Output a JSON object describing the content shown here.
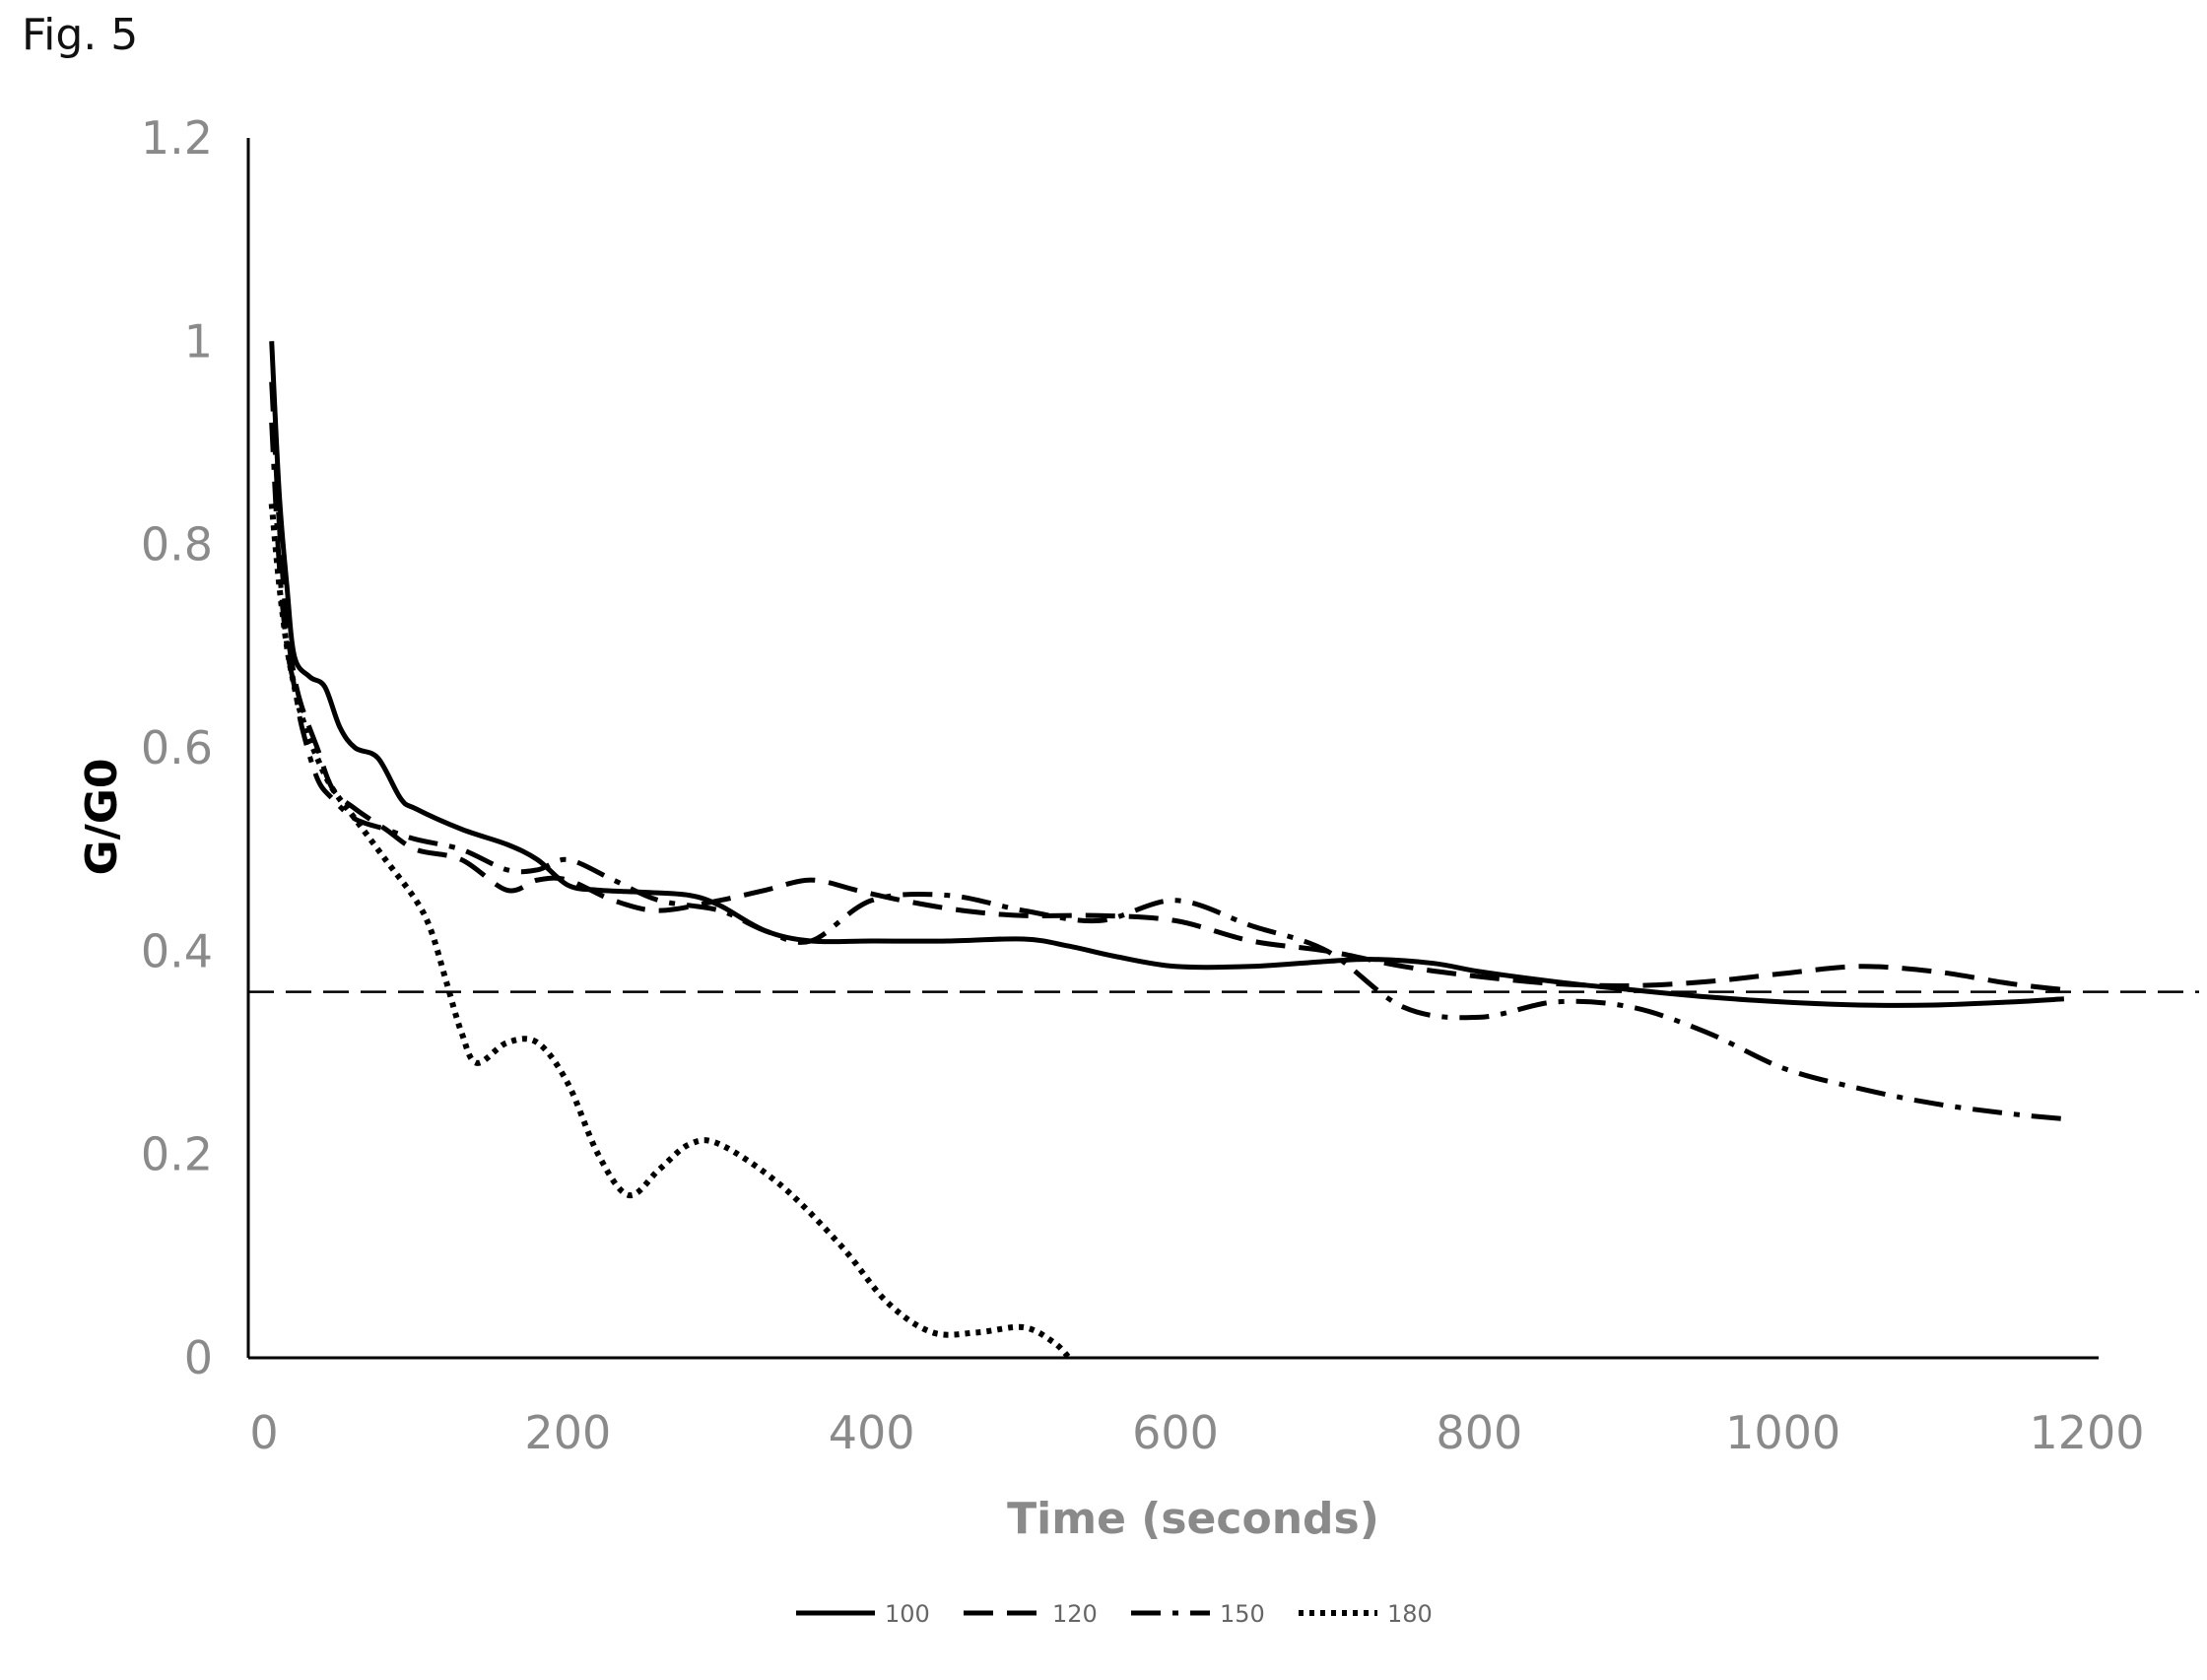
{
  "figure_label": "Fig. 5",
  "chart_data": {
    "type": "line",
    "title": "",
    "xlabel": "Time (seconds)",
    "ylabel": "G/G0",
    "xlim": [
      0,
      1200
    ],
    "ylim": [
      0,
      1.2
    ],
    "x_ticks": [
      0,
      200,
      400,
      600,
      800,
      1000,
      1200
    ],
    "y_ticks": [
      0,
      0.2,
      0.4,
      0.6,
      0.8,
      1,
      1.2
    ],
    "y_tick_labels": [
      "0",
      "0.2",
      "0.4",
      "0.6",
      "0.8",
      "1",
      "1.2"
    ],
    "grid": false,
    "legend_position": "bottom-center",
    "reference_line": {
      "y": 0.36,
      "style": "dashed"
    },
    "colors": {
      "axis": "#000000",
      "tick_text": "#8a8a8a",
      "xlabel": "#8a8a8a",
      "ylabel": "#000000",
      "series": "#000000"
    },
    "series": [
      {
        "name": "100",
        "style": "solid",
        "x": [
          5,
          10,
          15,
          20,
          30,
          40,
          50,
          60,
          75,
          90,
          100,
          130,
          160,
          180,
          200,
          220,
          250,
          280,
          300,
          330,
          360,
          400,
          450,
          500,
          530,
          560,
          600,
          650,
          700,
          730,
          770,
          800,
          850,
          900,
          950,
          1000,
          1050,
          1100,
          1150,
          1185
        ],
        "y": [
          1.0,
          0.85,
          0.76,
          0.69,
          0.67,
          0.66,
          0.62,
          0.6,
          0.59,
          0.55,
          0.54,
          0.52,
          0.505,
          0.49,
          0.465,
          0.46,
          0.458,
          0.455,
          0.445,
          0.42,
          0.41,
          0.41,
          0.41,
          0.412,
          0.405,
          0.395,
          0.385,
          0.385,
          0.39,
          0.392,
          0.388,
          0.38,
          0.37,
          0.362,
          0.355,
          0.35,
          0.347,
          0.347,
          0.35,
          0.353
        ]
      },
      {
        "name": "120",
        "style": "dashed",
        "x": [
          5,
          10,
          15,
          20,
          25,
          35,
          45,
          60,
          80,
          100,
          130,
          160,
          180,
          200,
          230,
          260,
          300,
          330,
          360,
          390,
          420,
          460,
          500,
          550,
          600,
          650,
          700,
          750,
          800,
          850,
          900,
          950,
          1000,
          1050,
          1100,
          1150,
          1185
        ],
        "y": [
          0.96,
          0.82,
          0.72,
          0.67,
          0.64,
          0.6,
          0.56,
          0.54,
          0.52,
          0.5,
          0.49,
          0.46,
          0.47,
          0.47,
          0.45,
          0.44,
          0.45,
          0.46,
          0.47,
          0.46,
          0.45,
          0.44,
          0.435,
          0.435,
          0.43,
          0.41,
          0.4,
          0.385,
          0.375,
          0.368,
          0.366,
          0.37,
          0.378,
          0.385,
          0.38,
          0.368,
          0.362
        ]
      },
      {
        "name": "150",
        "style": "dashdot",
        "x": [
          5,
          10,
          15,
          20,
          25,
          35,
          45,
          60,
          80,
          100,
          130,
          160,
          180,
          200,
          230,
          260,
          300,
          330,
          360,
          400,
          450,
          500,
          550,
          600,
          650,
          700,
          750,
          800,
          850,
          900,
          950,
          1000,
          1050,
          1100,
          1150,
          1185
        ],
        "y": [
          0.92,
          0.78,
          0.7,
          0.66,
          0.62,
          0.57,
          0.55,
          0.53,
          0.52,
          0.51,
          0.5,
          0.48,
          0.48,
          0.49,
          0.47,
          0.45,
          0.44,
          0.42,
          0.41,
          0.45,
          0.455,
          0.44,
          0.43,
          0.45,
          0.425,
          0.4,
          0.345,
          0.335,
          0.35,
          0.345,
          0.32,
          0.285,
          0.265,
          0.25,
          0.24,
          0.235
        ]
      },
      {
        "name": "180",
        "style": "dotted",
        "x": [
          5,
          10,
          15,
          20,
          25,
          35,
          45,
          60,
          80,
          100,
          110,
          120,
          130,
          140,
          160,
          180,
          200,
          220,
          240,
          260,
          280,
          300,
          340,
          380,
          410,
          440,
          470,
          500,
          520,
          530
        ],
        "y": [
          0.84,
          0.76,
          0.7,
          0.66,
          0.63,
          0.59,
          0.56,
          0.53,
          0.49,
          0.45,
          0.42,
          0.37,
          0.32,
          0.29,
          0.31,
          0.31,
          0.27,
          0.2,
          0.16,
          0.185,
          0.21,
          0.21,
          0.17,
          0.11,
          0.055,
          0.025,
          0.025,
          0.03,
          0.015,
          0.0
        ]
      }
    ]
  }
}
